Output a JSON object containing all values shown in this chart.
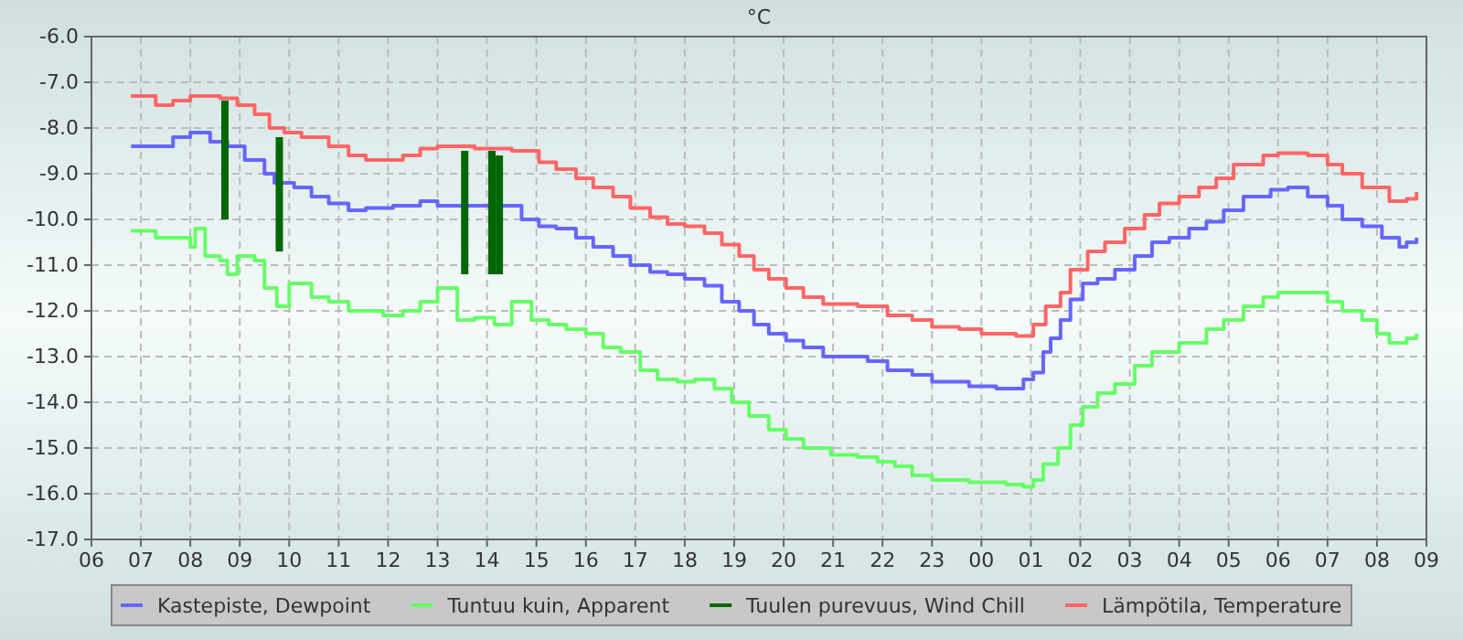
{
  "chart_data": {
    "type": "step",
    "title": "°C",
    "grid": true,
    "legend": "bottom",
    "line_style": "solid",
    "marker": "none",
    "xlim": [
      6,
      33
    ],
    "ylim": [
      -17,
      -6
    ],
    "xticks": [
      {
        "value": 6,
        "label": "06"
      },
      {
        "value": 7,
        "label": "07"
      },
      {
        "value": 8,
        "label": "08"
      },
      {
        "value": 9,
        "label": "09"
      },
      {
        "value": 10,
        "label": "10"
      },
      {
        "value": 11,
        "label": "11"
      },
      {
        "value": 12,
        "label": "12"
      },
      {
        "value": 13,
        "label": "13"
      },
      {
        "value": 14,
        "label": "14"
      },
      {
        "value": 15,
        "label": "15"
      },
      {
        "value": 16,
        "label": "16"
      },
      {
        "value": 17,
        "label": "17"
      },
      {
        "value": 18,
        "label": "18"
      },
      {
        "value": 19,
        "label": "19"
      },
      {
        "value": 20,
        "label": "20"
      },
      {
        "value": 21,
        "label": "21"
      },
      {
        "value": 22,
        "label": "22"
      },
      {
        "value": 23,
        "label": "23"
      },
      {
        "value": 24,
        "label": "00"
      },
      {
        "value": 25,
        "label": "01"
      },
      {
        "value": 26,
        "label": "02"
      },
      {
        "value": 27,
        "label": "03"
      },
      {
        "value": 28,
        "label": "04"
      },
      {
        "value": 29,
        "label": "05"
      },
      {
        "value": 30,
        "label": "06"
      },
      {
        "value": 31,
        "label": "07"
      },
      {
        "value": 32,
        "label": "08"
      },
      {
        "value": 33,
        "label": "09"
      }
    ],
    "yticks": [
      {
        "value": -6,
        "label": "-6.0"
      },
      {
        "value": -7,
        "label": "-7.0"
      },
      {
        "value": -8,
        "label": "-8.0"
      },
      {
        "value": -9,
        "label": "-9.0"
      },
      {
        "value": -10,
        "label": "-10.0"
      },
      {
        "value": -11,
        "label": "-11.0"
      },
      {
        "value": -12,
        "label": "-12.0"
      },
      {
        "value": -13,
        "label": "-13.0"
      },
      {
        "value": -14,
        "label": "-14.0"
      },
      {
        "value": -15,
        "label": "-15.0"
      },
      {
        "value": -16,
        "label": "-16.0"
      },
      {
        "value": -17,
        "label": "-17.0"
      }
    ],
    "series": [
      {
        "name": "Kastepiste, Dewpoint",
        "color": "#6666ff",
        "x": [
          6.8,
          7.3,
          7.65,
          8.0,
          8.4,
          8.75,
          9.1,
          9.5,
          9.7,
          10.1,
          10.45,
          10.8,
          11.2,
          11.55,
          12.1,
          12.65,
          13.0,
          14.3,
          14.7,
          15.05,
          15.4,
          15.8,
          16.15,
          16.55,
          16.9,
          17.3,
          17.65,
          18.0,
          18.4,
          18.75,
          19.1,
          19.4,
          19.7,
          20.05,
          20.4,
          20.8,
          21.35,
          21.7,
          22.1,
          22.6,
          23.0,
          23.75,
          24.3,
          24.7,
          24.85,
          25.05,
          25.25,
          25.4,
          25.6,
          25.8,
          26.05,
          26.35,
          26.7,
          27.1,
          27.45,
          27.8,
          28.2,
          28.55,
          28.9,
          29.3,
          29.85,
          30.2,
          30.6,
          31.0,
          31.3,
          31.7,
          32.1,
          32.45,
          32.6,
          32.8
        ],
        "values": [
          -8.4,
          -8.4,
          -8.2,
          -8.1,
          -8.3,
          -8.4,
          -8.7,
          -9.0,
          -9.2,
          -9.3,
          -9.5,
          -9.65,
          -9.8,
          -9.75,
          -9.7,
          -9.6,
          -9.7,
          -9.7,
          -10.0,
          -10.15,
          -10.2,
          -10.4,
          -10.6,
          -10.8,
          -11.0,
          -11.15,
          -11.2,
          -11.3,
          -11.45,
          -11.8,
          -12.0,
          -12.3,
          -12.5,
          -12.65,
          -12.8,
          -13.0,
          -13.0,
          -13.1,
          -13.3,
          -13.4,
          -13.55,
          -13.65,
          -13.7,
          -13.7,
          -13.5,
          -13.35,
          -12.9,
          -12.6,
          -12.2,
          -11.75,
          -11.4,
          -11.3,
          -11.1,
          -10.8,
          -10.5,
          -10.4,
          -10.2,
          -10.05,
          -9.8,
          -9.5,
          -9.35,
          -9.3,
          -9.5,
          -9.7,
          -10.0,
          -10.15,
          -10.4,
          -10.6,
          -10.5,
          -10.4
        ]
      },
      {
        "name": "Tuntuu kuin, Apparent",
        "color": "#66ff66",
        "x": [
          6.8,
          7.3,
          7.85,
          8.0,
          8.1,
          8.3,
          8.6,
          8.75,
          8.95,
          9.3,
          9.5,
          9.75,
          10.0,
          10.25,
          10.45,
          10.8,
          11.2,
          11.55,
          11.9,
          12.3,
          12.65,
          13.0,
          13.4,
          13.75,
          14.15,
          14.5,
          14.9,
          15.25,
          15.6,
          16.0,
          16.35,
          16.7,
          17.1,
          17.45,
          17.85,
          18.2,
          18.6,
          18.95,
          19.3,
          19.7,
          20.05,
          20.4,
          20.95,
          21.5,
          21.9,
          22.25,
          22.6,
          23.0,
          23.75,
          24.5,
          24.85,
          25.05,
          25.25,
          25.55,
          25.8,
          26.05,
          26.35,
          26.7,
          27.1,
          27.45,
          28.0,
          28.55,
          28.9,
          29.3,
          29.7,
          30.0,
          30.6,
          31.0,
          31.3,
          31.7,
          32.0,
          32.25,
          32.6,
          32.8
        ],
        "values": [
          -10.25,
          -10.4,
          -10.4,
          -10.6,
          -10.2,
          -10.8,
          -10.9,
          -11.2,
          -10.8,
          -10.9,
          -11.5,
          -11.9,
          -11.4,
          -11.4,
          -11.7,
          -11.8,
          -12.0,
          -12.0,
          -12.1,
          -12.0,
          -11.8,
          -11.5,
          -12.2,
          -12.15,
          -12.3,
          -11.8,
          -12.2,
          -12.3,
          -12.4,
          -12.5,
          -12.8,
          -12.9,
          -13.3,
          -13.5,
          -13.55,
          -13.5,
          -13.7,
          -14.0,
          -14.3,
          -14.6,
          -14.8,
          -15.0,
          -15.15,
          -15.2,
          -15.3,
          -15.4,
          -15.6,
          -15.7,
          -15.75,
          -15.8,
          -15.85,
          -15.7,
          -15.35,
          -15.0,
          -14.5,
          -14.1,
          -13.8,
          -13.6,
          -13.2,
          -12.9,
          -12.7,
          -12.4,
          -12.2,
          -11.9,
          -11.7,
          -11.6,
          -11.6,
          -11.8,
          -12.0,
          -12.2,
          -12.5,
          -12.7,
          -12.6,
          -12.5
        ]
      },
      {
        "name": "Tuulen purevuus, Wind Chill",
        "color": "#006600",
        "type": "bar",
        "x": [
          8.7,
          9.8,
          13.55,
          14.1,
          14.25
        ],
        "base": [
          -7.4,
          -8.2,
          -8.5,
          -8.5,
          -8.6
        ],
        "values": [
          -2.6,
          -2.5,
          -2.7,
          -2.7,
          -2.6
        ]
      },
      {
        "name": "Lämpötila, Temperature",
        "color": "#ff6666",
        "x": [
          6.8,
          7.3,
          7.65,
          8.0,
          8.6,
          8.95,
          9.3,
          9.6,
          9.9,
          10.25,
          10.8,
          11.2,
          11.55,
          11.9,
          12.3,
          12.65,
          13.0,
          13.75,
          14.5,
          15.05,
          15.4,
          15.8,
          16.15,
          16.55,
          16.9,
          17.3,
          17.65,
          18.0,
          18.4,
          18.75,
          19.1,
          19.4,
          19.7,
          20.05,
          20.4,
          20.8,
          21.5,
          22.1,
          22.6,
          23.0,
          23.55,
          24.0,
          24.7,
          25.05,
          25.3,
          25.6,
          25.8,
          26.15,
          26.5,
          26.9,
          27.3,
          27.6,
          28.0,
          28.4,
          28.75,
          29.1,
          29.7,
          30.0,
          30.6,
          31.0,
          31.3,
          31.7,
          32.25,
          32.6,
          32.8
        ],
        "values": [
          -7.3,
          -7.5,
          -7.4,
          -7.3,
          -7.35,
          -7.5,
          -7.7,
          -8.0,
          -8.1,
          -8.2,
          -8.4,
          -8.6,
          -8.7,
          -8.7,
          -8.6,
          -8.45,
          -8.4,
          -8.45,
          -8.5,
          -8.75,
          -8.9,
          -9.1,
          -9.3,
          -9.5,
          -9.75,
          -9.95,
          -10.1,
          -10.15,
          -10.3,
          -10.55,
          -10.8,
          -11.1,
          -11.3,
          -11.5,
          -11.7,
          -11.85,
          -11.9,
          -12.1,
          -12.2,
          -12.35,
          -12.4,
          -12.5,
          -12.55,
          -12.3,
          -11.9,
          -11.6,
          -11.1,
          -10.7,
          -10.5,
          -10.2,
          -9.9,
          -9.65,
          -9.5,
          -9.3,
          -9.1,
          -8.8,
          -8.6,
          -8.55,
          -8.6,
          -8.8,
          -9.0,
          -9.3,
          -9.6,
          -9.55,
          -9.4
        ]
      }
    ]
  }
}
